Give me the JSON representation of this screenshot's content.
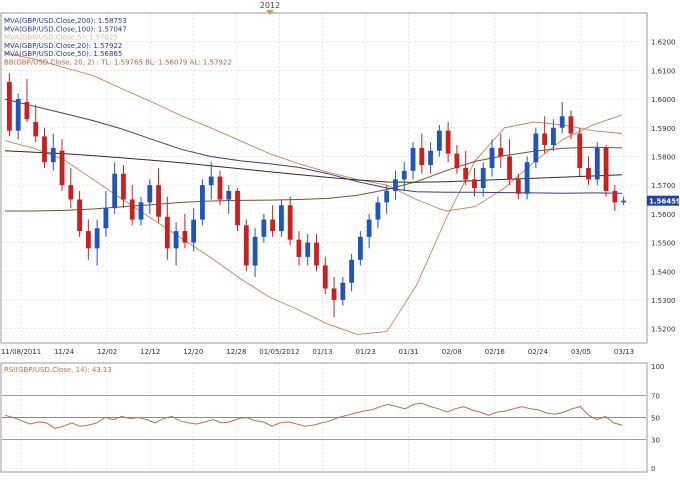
{
  "top_label": "2012",
  "chart_data": [
    {
      "type": "candlestick",
      "title": "",
      "legend_placement": "top-left",
      "price_axis": {
        "ylim": [
          1.515,
          1.63
        ],
        "ticks": [
          "1.6200",
          "1.6100",
          "1.6000",
          "1.5900",
          "1.5800",
          "1.5700",
          "1.5600",
          "1.5500",
          "1.5400",
          "1.5300",
          "1.5200"
        ]
      },
      "last_price": "1.56459",
      "date_ticks": [
        "11/08/2011",
        "11/24",
        "12/02",
        "12/12",
        "12/20",
        "12/28",
        "01/05/2012",
        "01/13",
        "01/23",
        "01/31",
        "02/08",
        "02/16",
        "02/24",
        "03/05",
        "03/13"
      ],
      "indicators": [
        {
          "label": "MVA(GBP/USD.Close,200): 1.58753",
          "color": "#3a2a1a"
        },
        {
          "label": "MVA(GBP/USD.Close,100): 1.57047",
          "color": "#3a3a9a"
        },
        {
          "label": "MVA(GBP/USD.Close,5): 1.57025",
          "color": "#e8c8a8"
        },
        {
          "label": "MVA(GBP/USD.Close,20): 1.57922",
          "color": "#4a4040"
        },
        {
          "label": "MVA(GBP/USD.Close,50): 1.56865",
          "color": "#7a5030"
        },
        {
          "label": "BB(GBP/USD.Close, 20, 2) : TL: 1.59765  BL: 1.56079  AL: 1.57922",
          "color": "#d08050"
        }
      ],
      "colors": {
        "up": "#2255bb",
        "down": "#cc2020",
        "ma200": "#3a2a1a",
        "ma100": "#3a3a9a",
        "ma50": "#7a5030",
        "bollinger": "#d08050",
        "text_blue": "#2a3a8a",
        "text_bb": "#c06030",
        "grid": "#d8d8d8"
      },
      "series": {
        "ma200": [
          1.582,
          1.5815,
          1.581,
          1.5803,
          1.5795,
          1.5787,
          1.5778,
          1.5768,
          1.5757,
          1.5747,
          1.5737,
          1.5727,
          1.5718,
          1.5711,
          1.571,
          1.5712,
          1.5716,
          1.572,
          1.5724,
          1.5728,
          1.5732,
          1.5736
        ],
        "ma100": [
          1.6,
          1.5975,
          1.595,
          1.5925,
          1.5895,
          1.586,
          1.5825,
          1.58,
          1.5785,
          1.5775,
          1.5762,
          1.574,
          1.5712,
          1.569,
          1.5677,
          1.5675,
          1.5675,
          1.5674,
          1.5673,
          1.5672,
          1.5673,
          1.5672
        ],
        "ma50": [
          1.561,
          1.561,
          1.5612,
          1.5617,
          1.5625,
          1.5632,
          1.564,
          1.5645,
          1.5647,
          1.5648,
          1.565,
          1.5654,
          1.5665,
          1.5685,
          1.5712,
          1.575,
          1.5783,
          1.5803,
          1.5818,
          1.5829,
          1.5832,
          1.583
        ],
        "bb_upper": [
          1.5855,
          1.5828,
          1.5789,
          1.572,
          1.565,
          1.5583,
          1.5515,
          1.5448,
          1.5375,
          1.531,
          1.5265,
          1.5215,
          1.518,
          1.519,
          1.535,
          1.558,
          1.5785,
          1.59,
          1.592,
          1.591,
          1.589,
          1.588
        ],
        "bb_lower": [
          1.616,
          1.614,
          1.611,
          1.6082,
          1.6035,
          1.599,
          1.5942,
          1.59,
          1.5855,
          1.581,
          1.5775,
          1.5745,
          1.572,
          1.57,
          1.565,
          1.561,
          1.5625,
          1.569,
          1.578,
          1.586,
          1.591,
          1.5945
        ]
      },
      "candles": [
        {
          "o": 1.606,
          "h": 1.609,
          "l": 1.587,
          "c": 1.589
        },
        {
          "o": 1.589,
          "h": 1.602,
          "l": 1.586,
          "c": 1.6
        },
        {
          "o": 1.599,
          "h": 1.607,
          "l": 1.592,
          "c": 1.593
        },
        {
          "o": 1.592,
          "h": 1.598,
          "l": 1.585,
          "c": 1.587
        },
        {
          "o": 1.587,
          "h": 1.59,
          "l": 1.576,
          "c": 1.578
        },
        {
          "o": 1.578,
          "h": 1.588,
          "l": 1.575,
          "c": 1.583
        },
        {
          "o": 1.582,
          "h": 1.586,
          "l": 1.568,
          "c": 1.57
        },
        {
          "o": 1.57,
          "h": 1.576,
          "l": 1.562,
          "c": 1.565
        },
        {
          "o": 1.565,
          "h": 1.568,
          "l": 1.552,
          "c": 1.554
        },
        {
          "o": 1.554,
          "h": 1.558,
          "l": 1.544,
          "c": 1.548
        },
        {
          "o": 1.548,
          "h": 1.558,
          "l": 1.542,
          "c": 1.555
        },
        {
          "o": 1.555,
          "h": 1.568,
          "l": 1.552,
          "c": 1.562
        },
        {
          "o": 1.562,
          "h": 1.578,
          "l": 1.56,
          "c": 1.574
        },
        {
          "o": 1.574,
          "h": 1.577,
          "l": 1.562,
          "c": 1.565
        },
        {
          "o": 1.565,
          "h": 1.57,
          "l": 1.556,
          "c": 1.558
        },
        {
          "o": 1.558,
          "h": 1.566,
          "l": 1.556,
          "c": 1.564
        },
        {
          "o": 1.564,
          "h": 1.572,
          "l": 1.56,
          "c": 1.57
        },
        {
          "o": 1.57,
          "h": 1.576,
          "l": 1.557,
          "c": 1.559
        },
        {
          "o": 1.559,
          "h": 1.566,
          "l": 1.544,
          "c": 1.548
        },
        {
          "o": 1.548,
          "h": 1.557,
          "l": 1.542,
          "c": 1.554
        },
        {
          "o": 1.554,
          "h": 1.56,
          "l": 1.548,
          "c": 1.55
        },
        {
          "o": 1.55,
          "h": 1.562,
          "l": 1.547,
          "c": 1.558
        },
        {
          "o": 1.558,
          "h": 1.572,
          "l": 1.556,
          "c": 1.57
        },
        {
          "o": 1.57,
          "h": 1.578,
          "l": 1.565,
          "c": 1.573
        },
        {
          "o": 1.573,
          "h": 1.575,
          "l": 1.563,
          "c": 1.565
        },
        {
          "o": 1.565,
          "h": 1.57,
          "l": 1.56,
          "c": 1.568
        },
        {
          "o": 1.568,
          "h": 1.569,
          "l": 1.554,
          "c": 1.556
        },
        {
          "o": 1.556,
          "h": 1.558,
          "l": 1.54,
          "c": 1.542
        },
        {
          "o": 1.542,
          "h": 1.555,
          "l": 1.538,
          "c": 1.552
        },
        {
          "o": 1.552,
          "h": 1.56,
          "l": 1.55,
          "c": 1.558
        },
        {
          "o": 1.558,
          "h": 1.563,
          "l": 1.552,
          "c": 1.554
        },
        {
          "o": 1.554,
          "h": 1.565,
          "l": 1.552,
          "c": 1.563
        },
        {
          "o": 1.563,
          "h": 1.566,
          "l": 1.549,
          "c": 1.551
        },
        {
          "o": 1.551,
          "h": 1.554,
          "l": 1.542,
          "c": 1.545
        },
        {
          "o": 1.545,
          "h": 1.553,
          "l": 1.542,
          "c": 1.55
        },
        {
          "o": 1.55,
          "h": 1.553,
          "l": 1.54,
          "c": 1.542
        },
        {
          "o": 1.542,
          "h": 1.545,
          "l": 1.532,
          "c": 1.534
        },
        {
          "o": 1.534,
          "h": 1.538,
          "l": 1.524,
          "c": 1.53
        },
        {
          "o": 1.53,
          "h": 1.538,
          "l": 1.528,
          "c": 1.536
        },
        {
          "o": 1.536,
          "h": 1.546,
          "l": 1.533,
          "c": 1.544
        },
        {
          "o": 1.544,
          "h": 1.554,
          "l": 1.542,
          "c": 1.552
        },
        {
          "o": 1.552,
          "h": 1.56,
          "l": 1.548,
          "c": 1.558
        },
        {
          "o": 1.558,
          "h": 1.566,
          "l": 1.555,
          "c": 1.564
        },
        {
          "o": 1.564,
          "h": 1.57,
          "l": 1.56,
          "c": 1.568
        },
        {
          "o": 1.568,
          "h": 1.575,
          "l": 1.565,
          "c": 1.572
        },
        {
          "o": 1.572,
          "h": 1.578,
          "l": 1.568,
          "c": 1.575
        },
        {
          "o": 1.575,
          "h": 1.585,
          "l": 1.572,
          "c": 1.583
        },
        {
          "o": 1.583,
          "h": 1.588,
          "l": 1.574,
          "c": 1.577
        },
        {
          "o": 1.577,
          "h": 1.585,
          "l": 1.574,
          "c": 1.582
        },
        {
          "o": 1.582,
          "h": 1.591,
          "l": 1.58,
          "c": 1.589
        },
        {
          "o": 1.589,
          "h": 1.592,
          "l": 1.578,
          "c": 1.581
        },
        {
          "o": 1.581,
          "h": 1.584,
          "l": 1.574,
          "c": 1.576
        },
        {
          "o": 1.576,
          "h": 1.582,
          "l": 1.57,
          "c": 1.572
        },
        {
          "o": 1.572,
          "h": 1.576,
          "l": 1.566,
          "c": 1.569
        },
        {
          "o": 1.569,
          "h": 1.578,
          "l": 1.566,
          "c": 1.576
        },
        {
          "o": 1.576,
          "h": 1.586,
          "l": 1.573,
          "c": 1.583
        },
        {
          "o": 1.583,
          "h": 1.588,
          "l": 1.576,
          "c": 1.58
        },
        {
          "o": 1.58,
          "h": 1.586,
          "l": 1.57,
          "c": 1.572
        },
        {
          "o": 1.572,
          "h": 1.574,
          "l": 1.565,
          "c": 1.567
        },
        {
          "o": 1.567,
          "h": 1.58,
          "l": 1.565,
          "c": 1.578
        },
        {
          "o": 1.578,
          "h": 1.59,
          "l": 1.576,
          "c": 1.588
        },
        {
          "o": 1.588,
          "h": 1.594,
          "l": 1.581,
          "c": 1.584
        },
        {
          "o": 1.584,
          "h": 1.593,
          "l": 1.582,
          "c": 1.59
        },
        {
          "o": 1.59,
          "h": 1.599,
          "l": 1.588,
          "c": 1.594
        },
        {
          "o": 1.594,
          "h": 1.596,
          "l": 1.586,
          "c": 1.588
        },
        {
          "o": 1.588,
          "h": 1.59,
          "l": 1.573,
          "c": 1.576
        },
        {
          "o": 1.576,
          "h": 1.58,
          "l": 1.57,
          "c": 1.572
        },
        {
          "o": 1.572,
          "h": 1.585,
          "l": 1.57,
          "c": 1.583
        },
        {
          "o": 1.583,
          "h": 1.584,
          "l": 1.566,
          "c": 1.568
        },
        {
          "o": 1.568,
          "h": 1.57,
          "l": 1.561,
          "c": 1.564
        },
        {
          "o": 1.564,
          "h": 1.566,
          "l": 1.563,
          "c": 1.5646
        }
      ]
    },
    {
      "type": "line",
      "title": "",
      "label": "RSI(GBP/USD.Close, 14): 43.13",
      "ylim": [
        0,
        100
      ],
      "ticks": [
        "100",
        "70",
        "50",
        "30",
        "0"
      ],
      "reference_lines": [
        70,
        50,
        30
      ],
      "color": "#c07040",
      "values": [
        52,
        50,
        47,
        44,
        46,
        45,
        40,
        42,
        45,
        42,
        43,
        45,
        50,
        48,
        51,
        49,
        50,
        48,
        45,
        49,
        51,
        47,
        45,
        44,
        46,
        48,
        45,
        46,
        49,
        50,
        47,
        46,
        42,
        45,
        46,
        44,
        42,
        43,
        45,
        47,
        50,
        52,
        54,
        56,
        57,
        60,
        62,
        60,
        58,
        62,
        63,
        60,
        58,
        55,
        58,
        60,
        57,
        55,
        52,
        55,
        56,
        58,
        60,
        58,
        57,
        54,
        53,
        55,
        58,
        60,
        52,
        48,
        51,
        45,
        43
      ]
    }
  ]
}
